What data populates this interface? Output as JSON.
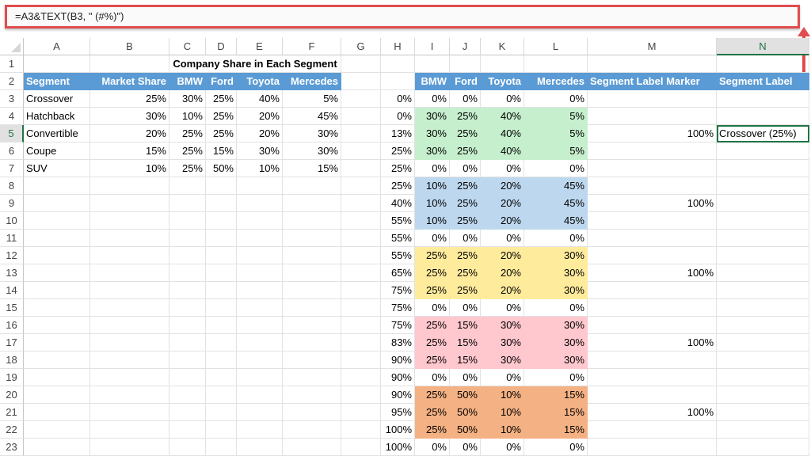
{
  "formula_bar": {
    "formula": "=A3&TEXT(B3, \" (#%)\")"
  },
  "columns": [
    "A",
    "B",
    "C",
    "D",
    "E",
    "F",
    "G",
    "H",
    "I",
    "J",
    "K",
    "L",
    "M",
    "N"
  ],
  "selected_column": "N",
  "selected_row": 5,
  "rows": [
    1,
    2,
    3,
    4,
    5,
    6,
    7,
    8,
    9,
    10,
    11,
    12,
    13,
    14,
    15,
    16,
    17,
    18,
    19,
    20,
    21,
    22,
    23
  ],
  "title": "Company Share in Each Segment",
  "left_headers": [
    "Segment",
    "Market Share",
    "BMW",
    "Ford",
    "Toyota",
    "Mercedes"
  ],
  "left_table": [
    [
      "Crossover",
      "25%",
      "30%",
      "25%",
      "40%",
      "5%"
    ],
    [
      "Hatchback",
      "30%",
      "10%",
      "25%",
      "20%",
      "45%"
    ],
    [
      "Convertible",
      "20%",
      "25%",
      "25%",
      "20%",
      "30%"
    ],
    [
      "Coupe",
      "15%",
      "25%",
      "15%",
      "30%",
      "30%"
    ],
    [
      "SUV",
      "10%",
      "25%",
      "50%",
      "10%",
      "15%"
    ]
  ],
  "right_headers": [
    "BMW",
    "Ford",
    "Toyota",
    "Mercedes",
    "Segment Label Marker",
    "Segment Label"
  ],
  "right_table": [
    {
      "h": "0%",
      "v": [
        "0%",
        "0%",
        "0%",
        "0%"
      ],
      "m": "",
      "n": "",
      "color": ""
    },
    {
      "h": "0%",
      "v": [
        "30%",
        "25%",
        "40%",
        "5%"
      ],
      "m": "",
      "n": "",
      "color": "#c6efce"
    },
    {
      "h": "13%",
      "v": [
        "30%",
        "25%",
        "40%",
        "5%"
      ],
      "m": "100%",
      "n": "Crossover (25%)",
      "color": "#c6efce"
    },
    {
      "h": "25%",
      "v": [
        "30%",
        "25%",
        "40%",
        "5%"
      ],
      "m": "",
      "n": "",
      "color": "#c6efce"
    },
    {
      "h": "25%",
      "v": [
        "0%",
        "0%",
        "0%",
        "0%"
      ],
      "m": "",
      "n": "",
      "color": ""
    },
    {
      "h": "25%",
      "v": [
        "10%",
        "25%",
        "20%",
        "45%"
      ],
      "m": "",
      "n": "",
      "color": "#bdd7ee"
    },
    {
      "h": "40%",
      "v": [
        "10%",
        "25%",
        "20%",
        "45%"
      ],
      "m": "100%",
      "n": "",
      "color": "#bdd7ee"
    },
    {
      "h": "55%",
      "v": [
        "10%",
        "25%",
        "20%",
        "45%"
      ],
      "m": "",
      "n": "",
      "color": "#bdd7ee"
    },
    {
      "h": "55%",
      "v": [
        "0%",
        "0%",
        "0%",
        "0%"
      ],
      "m": "",
      "n": "",
      "color": ""
    },
    {
      "h": "55%",
      "v": [
        "25%",
        "25%",
        "20%",
        "30%"
      ],
      "m": "",
      "n": "",
      "color": "#ffeb9c"
    },
    {
      "h": "65%",
      "v": [
        "25%",
        "25%",
        "20%",
        "30%"
      ],
      "m": "100%",
      "n": "",
      "color": "#ffeb9c"
    },
    {
      "h": "75%",
      "v": [
        "25%",
        "25%",
        "20%",
        "30%"
      ],
      "m": "",
      "n": "",
      "color": "#ffeb9c"
    },
    {
      "h": "75%",
      "v": [
        "0%",
        "0%",
        "0%",
        "0%"
      ],
      "m": "",
      "n": "",
      "color": ""
    },
    {
      "h": "75%",
      "v": [
        "25%",
        "15%",
        "30%",
        "30%"
      ],
      "m": "",
      "n": "",
      "color": "#ffc7ce"
    },
    {
      "h": "83%",
      "v": [
        "25%",
        "15%",
        "30%",
        "30%"
      ],
      "m": "100%",
      "n": "",
      "color": "#ffc7ce"
    },
    {
      "h": "90%",
      "v": [
        "25%",
        "15%",
        "30%",
        "30%"
      ],
      "m": "",
      "n": "",
      "color": "#ffc7ce"
    },
    {
      "h": "90%",
      "v": [
        "0%",
        "0%",
        "0%",
        "0%"
      ],
      "m": "",
      "n": "",
      "color": ""
    },
    {
      "h": "90%",
      "v": [
        "25%",
        "50%",
        "10%",
        "15%"
      ],
      "m": "",
      "n": "",
      "color": "#f4b183"
    },
    {
      "h": "95%",
      "v": [
        "25%",
        "50%",
        "10%",
        "15%"
      ],
      "m": "100%",
      "n": "",
      "color": "#f4b183"
    },
    {
      "h": "100%",
      "v": [
        "25%",
        "50%",
        "10%",
        "15%"
      ],
      "m": "",
      "n": "",
      "color": "#f4b183"
    },
    {
      "h": "100%",
      "v": [
        "0%",
        "0%",
        "0%",
        "0%"
      ],
      "m": "",
      "n": "",
      "color": ""
    }
  ]
}
